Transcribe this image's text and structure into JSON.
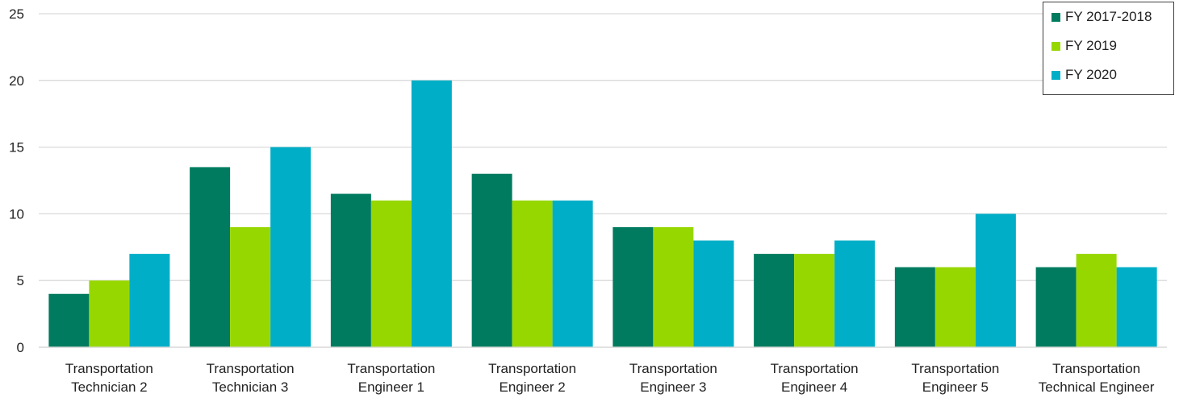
{
  "chart_data": {
    "type": "bar",
    "categories": [
      [
        "Transportation",
        "Technician 2"
      ],
      [
        "Transportation",
        "Technician 3"
      ],
      [
        "Transportation",
        "Engineer 1"
      ],
      [
        "Transportation",
        "Engineer 2"
      ],
      [
        "Transportation",
        "Engineer 3"
      ],
      [
        "Transportation",
        "Engineer 4"
      ],
      [
        "Transportation",
        "Engineer 5"
      ],
      [
        "Transportation",
        "Technical Engineer"
      ]
    ],
    "series": [
      {
        "name": "FY 2017-2018",
        "color": "#007b5f",
        "values": [
          4,
          13.5,
          11.5,
          13,
          9,
          7,
          6,
          6
        ]
      },
      {
        "name": "FY 2019",
        "color": "#97d700",
        "values": [
          5,
          9,
          11,
          11,
          9,
          7,
          6,
          7
        ]
      },
      {
        "name": "FY 2020",
        "color": "#00aec7",
        "values": [
          7,
          15,
          20,
          11,
          8,
          8,
          10,
          6
        ]
      }
    ],
    "ylim": [
      0,
      25
    ],
    "yticks": [
      0,
      5,
      10,
      15,
      20,
      25
    ],
    "grid": true,
    "legend": "top-right",
    "title": "",
    "xlabel": "",
    "ylabel": ""
  }
}
